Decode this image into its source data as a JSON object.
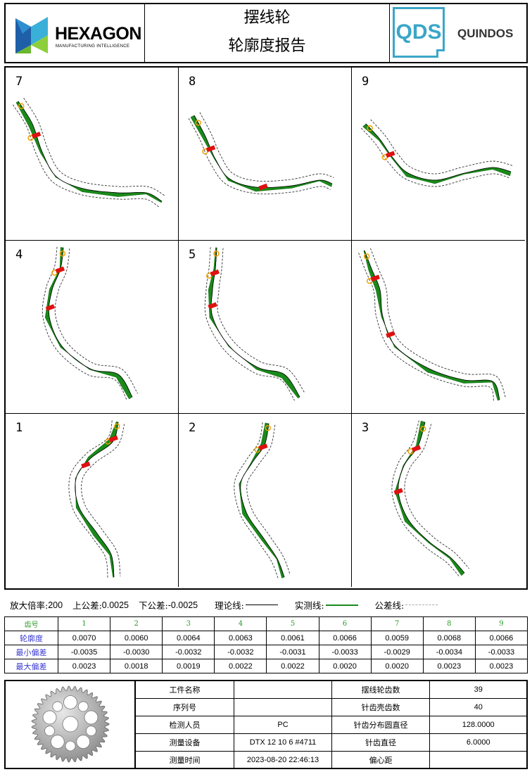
{
  "header": {
    "brand": "HEXAGON",
    "brand_sub": "MANUFACTURING INTELLIGENCE",
    "title_line1": "摆线轮",
    "title_line2": "轮廓度报告",
    "qds_logo": "QDS",
    "software": "QUINDOS"
  },
  "panels": [
    {
      "label": "7"
    },
    {
      "label": "8"
    },
    {
      "label": "9"
    },
    {
      "label": "4"
    },
    {
      "label": "5"
    },
    {
      "label": ""
    },
    {
      "label": "1"
    },
    {
      "label": "2"
    },
    {
      "label": "3"
    }
  ],
  "legend": {
    "magnification_label": "放大倍率:",
    "magnification": "200",
    "upper_tol_label": "上公差:",
    "upper_tol": "0.0025",
    "lower_tol_label": "下公差:",
    "lower_tol": "-0.0025",
    "theory_line_label": "理论线:",
    "actual_line_label": "实测线:",
    "tolerance_line_label": "公差线:",
    "actual_color": "#1a8a1a"
  },
  "deviation_table": {
    "header_label": "齿号",
    "teeth": [
      "1",
      "2",
      "3",
      "4",
      "5",
      "6",
      "7",
      "8",
      "9"
    ],
    "rows": [
      {
        "label": "轮廓度",
        "values": [
          "0.0070",
          "0.0060",
          "0.0064",
          "0.0063",
          "0.0061",
          "0.0066",
          "0.0059",
          "0.0068",
          "0.0066"
        ]
      },
      {
        "label": "最小偏差",
        "values": [
          "-0.0035",
          "-0.0030",
          "-0.0032",
          "-0.0032",
          "-0.0031",
          "-0.0033",
          "-0.0029",
          "-0.0034",
          "-0.0033"
        ]
      },
      {
        "label": "最大偏差",
        "values": [
          "0.0023",
          "0.0018",
          "0.0019",
          "0.0022",
          "0.0022",
          "0.0020",
          "0.0020",
          "0.0023",
          "0.0023"
        ]
      }
    ]
  },
  "info": {
    "part_name_label": "工件名称",
    "part_name": "",
    "serial_label": "序列号",
    "serial": "",
    "inspector_label": "检测人员",
    "inspector": "PC",
    "device_label": "测量设备",
    "device": "DTX 12 10 6 #4711",
    "time_label": "测量时间",
    "time": "2023-08-20 22:46:13",
    "cyc_teeth_label": "摆线轮齿数",
    "cyc_teeth": "39",
    "pin_count_label": "针齿壳齿数",
    "pin_count": "40",
    "pin_circle_label": "针齿分布圆直径",
    "pin_circle": "128.0000",
    "pin_dia_label": "针齿直径",
    "pin_dia": "6.0000",
    "eccentricity_label": "偏心距",
    "eccentricity": ""
  }
}
